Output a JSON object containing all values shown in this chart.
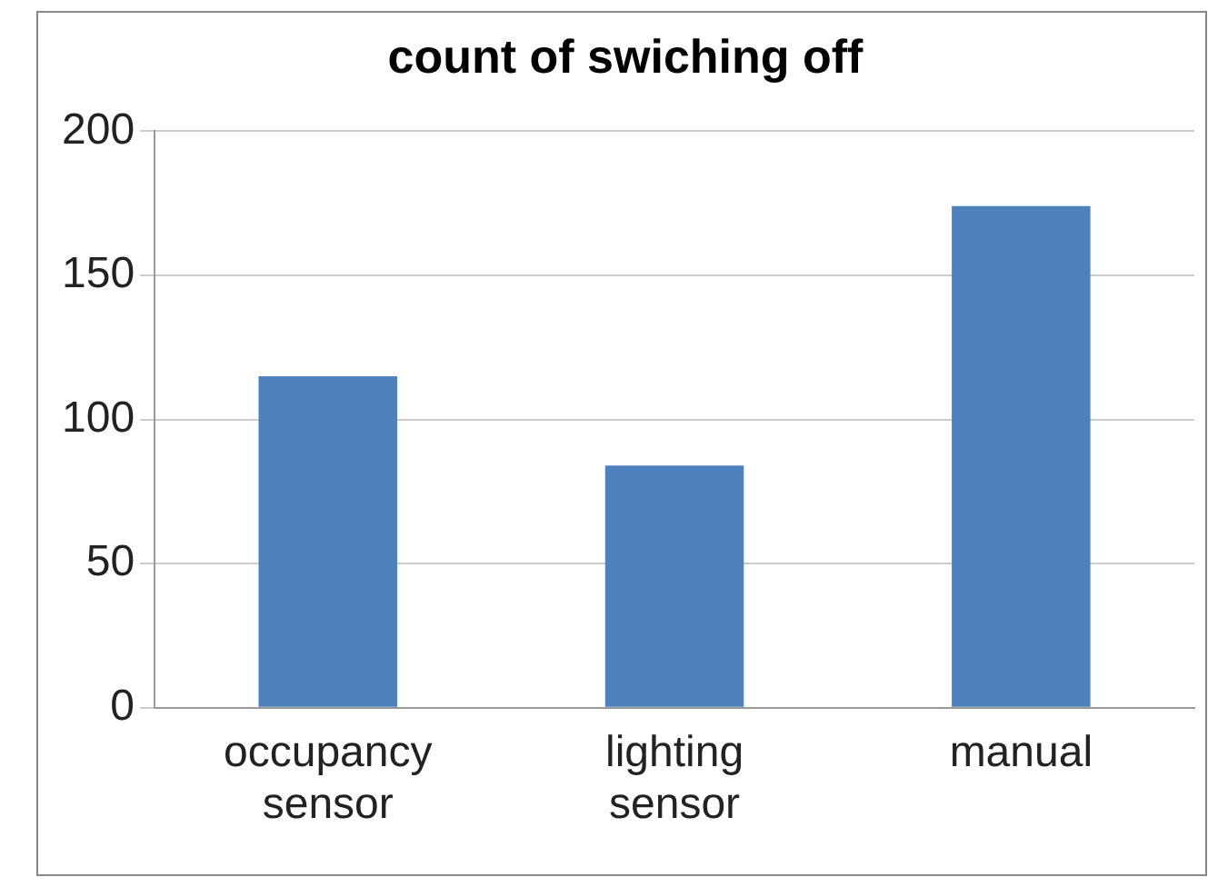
{
  "chart_data": {
    "type": "bar",
    "title": "count of swiching off",
    "categories": [
      "occupancy sensor",
      "lighting sensor",
      "manual"
    ],
    "values": [
      115,
      84,
      174
    ],
    "color": "#4f81bd",
    "ylim": [
      0,
      200
    ],
    "yticks": [
      0,
      50,
      100,
      150,
      200
    ],
    "grid": "y"
  }
}
